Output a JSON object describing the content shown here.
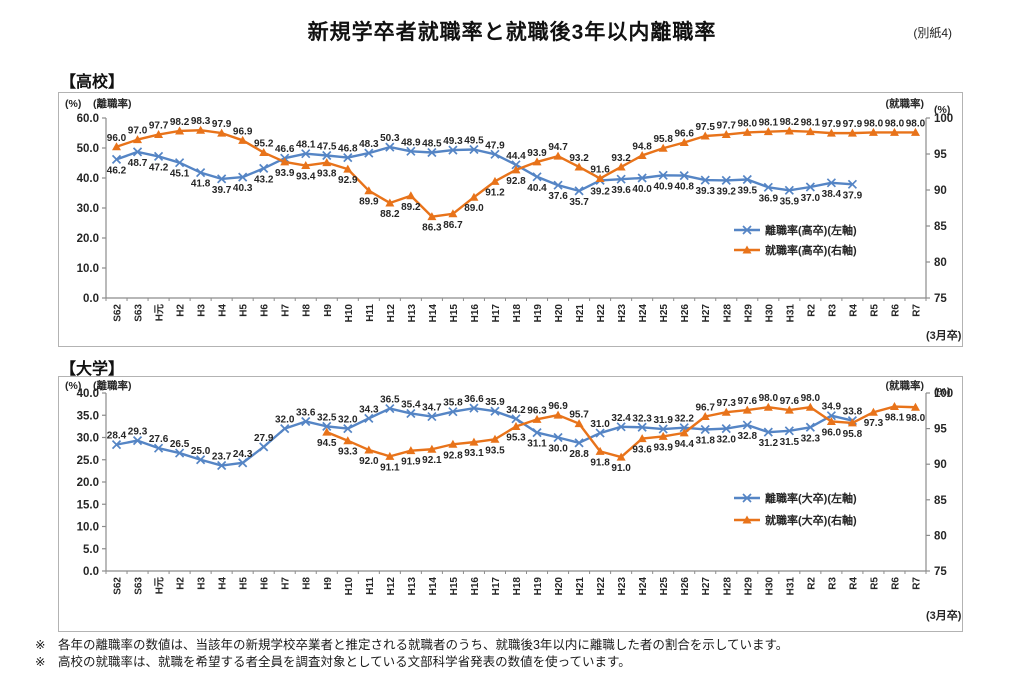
{
  "page": {
    "title": "新規学卒者就職率と就職後3年以内離職率",
    "corner_note": "(別紙4)",
    "notes": [
      "※　各年の離職率の数値は、当該年の新規学校卒業者と推定される就職者のうち、就職後3年以内に離職した者の割合を示しています。",
      "※　高校の就職率は、就職を希望する者全員を調査対象としている文部科学省発表の数値を使っています。"
    ]
  },
  "colors": {
    "turnover_blue": "#5585c5",
    "employment_orange": "#e8731a",
    "axis_gray": "#8c8c8c",
    "label_black": "#262626"
  },
  "chart_data": [
    {
      "id": "highschool",
      "type": "line",
      "title": "【高校】",
      "x_axis_note": "(3月卒)",
      "legend_position": "inside-right",
      "grid": false,
      "left_axis": {
        "label_pct": "(%)",
        "label_name": "(離職率)",
        "min": 0,
        "max": 60,
        "step": 10,
        "decimals": 1
      },
      "right_axis": {
        "label_name": "(就職率)",
        "label_pct": "(%)",
        "min": 75,
        "max": 100,
        "step": 5,
        "decimals": 0
      },
      "categories": [
        "S62",
        "S63",
        "H元",
        "H2",
        "H3",
        "H4",
        "H5",
        "H6",
        "H7",
        "H8",
        "H9",
        "H10",
        "H11",
        "H12",
        "H13",
        "H14",
        "H15",
        "H16",
        "H17",
        "H18",
        "H19",
        "H20",
        "H21",
        "H22",
        "H23",
        "H24",
        "H25",
        "H26",
        "H27",
        "H28",
        "H29",
        "H30",
        "H31",
        "R2",
        "R3",
        "R4",
        "R5",
        "R6",
        "R7"
      ],
      "series": [
        {
          "name": "離職率(高卒)(左軸)",
          "axis": "left",
          "color": "#5585c5",
          "marker": "x-cross",
          "values": [
            46.2,
            48.7,
            47.2,
            45.1,
            41.8,
            39.7,
            40.3,
            43.2,
            46.6,
            48.1,
            47.5,
            46.8,
            48.3,
            50.3,
            48.9,
            48.5,
            49.3,
            49.5,
            47.9,
            44.4,
            40.4,
            37.6,
            35.7,
            39.2,
            39.6,
            40.0,
            40.9,
            40.8,
            39.3,
            39.2,
            39.5,
            36.9,
            35.9,
            37.0,
            38.4,
            37.9,
            null,
            null,
            null
          ]
        },
        {
          "name": "就職率(高卒)(右軸)",
          "axis": "right",
          "color": "#e8731a",
          "marker": "triangle",
          "values": [
            96.0,
            97.0,
            97.7,
            98.2,
            98.3,
            97.9,
            96.9,
            95.2,
            93.9,
            93.4,
            93.8,
            92.9,
            89.9,
            88.2,
            89.2,
            86.3,
            86.7,
            89.0,
            91.2,
            92.8,
            93.9,
            94.7,
            93.2,
            91.6,
            93.2,
            94.8,
            95.8,
            96.6,
            97.5,
            97.7,
            98.0,
            98.1,
            98.2,
            98.1,
            97.9,
            97.9,
            98.0,
            98.0,
            98.0
          ]
        }
      ]
    },
    {
      "id": "university",
      "type": "line",
      "title": "【大学】",
      "x_axis_note": "(3月卒)",
      "legend_position": "inside-right",
      "grid": false,
      "left_axis": {
        "label_pct": "(%)",
        "label_name": "(離職率)",
        "min": 0,
        "max": 40,
        "step": 5,
        "decimals": 1
      },
      "right_axis": {
        "label_name": "(就職率)",
        "label_pct": "(%)",
        "min": 75,
        "max": 100,
        "step": 5,
        "decimals": 0
      },
      "categories": [
        "S62",
        "S63",
        "H元",
        "H2",
        "H3",
        "H4",
        "H5",
        "H6",
        "H7",
        "H8",
        "H9",
        "H10",
        "H11",
        "H12",
        "H13",
        "H14",
        "H15",
        "H16",
        "H17",
        "H18",
        "H19",
        "H20",
        "H21",
        "H22",
        "H23",
        "H24",
        "H25",
        "H26",
        "H27",
        "H28",
        "H29",
        "H30",
        "H31",
        "R2",
        "R3",
        "R4",
        "R5",
        "R6",
        "R7"
      ],
      "series": [
        {
          "name": "離職率(大卒)(左軸)",
          "axis": "left",
          "color": "#5585c5",
          "marker": "x-cross",
          "values": [
            28.4,
            29.3,
            27.6,
            26.5,
            25.0,
            23.7,
            24.3,
            27.9,
            32.0,
            33.6,
            32.5,
            32.0,
            34.3,
            36.5,
            35.4,
            34.7,
            35.8,
            36.6,
            35.9,
            34.2,
            31.1,
            30.0,
            28.8,
            31.0,
            32.4,
            32.3,
            31.9,
            32.2,
            31.8,
            32.0,
            32.8,
            31.2,
            31.5,
            32.3,
            34.9,
            33.8,
            null,
            null,
            null
          ]
        },
        {
          "name": "就職率(大卒)(右軸)",
          "axis": "right",
          "color": "#e8731a",
          "marker": "triangle",
          "values": [
            null,
            null,
            null,
            null,
            null,
            null,
            null,
            null,
            null,
            null,
            94.5,
            93.3,
            92.0,
            91.1,
            91.9,
            92.1,
            92.8,
            93.1,
            93.5,
            95.3,
            96.3,
            96.9,
            95.7,
            91.8,
            91.0,
            93.6,
            93.9,
            94.4,
            96.7,
            97.3,
            97.6,
            98.0,
            97.6,
            98.0,
            96.0,
            95.8,
            97.3,
            98.1,
            98.0
          ]
        }
      ]
    }
  ]
}
